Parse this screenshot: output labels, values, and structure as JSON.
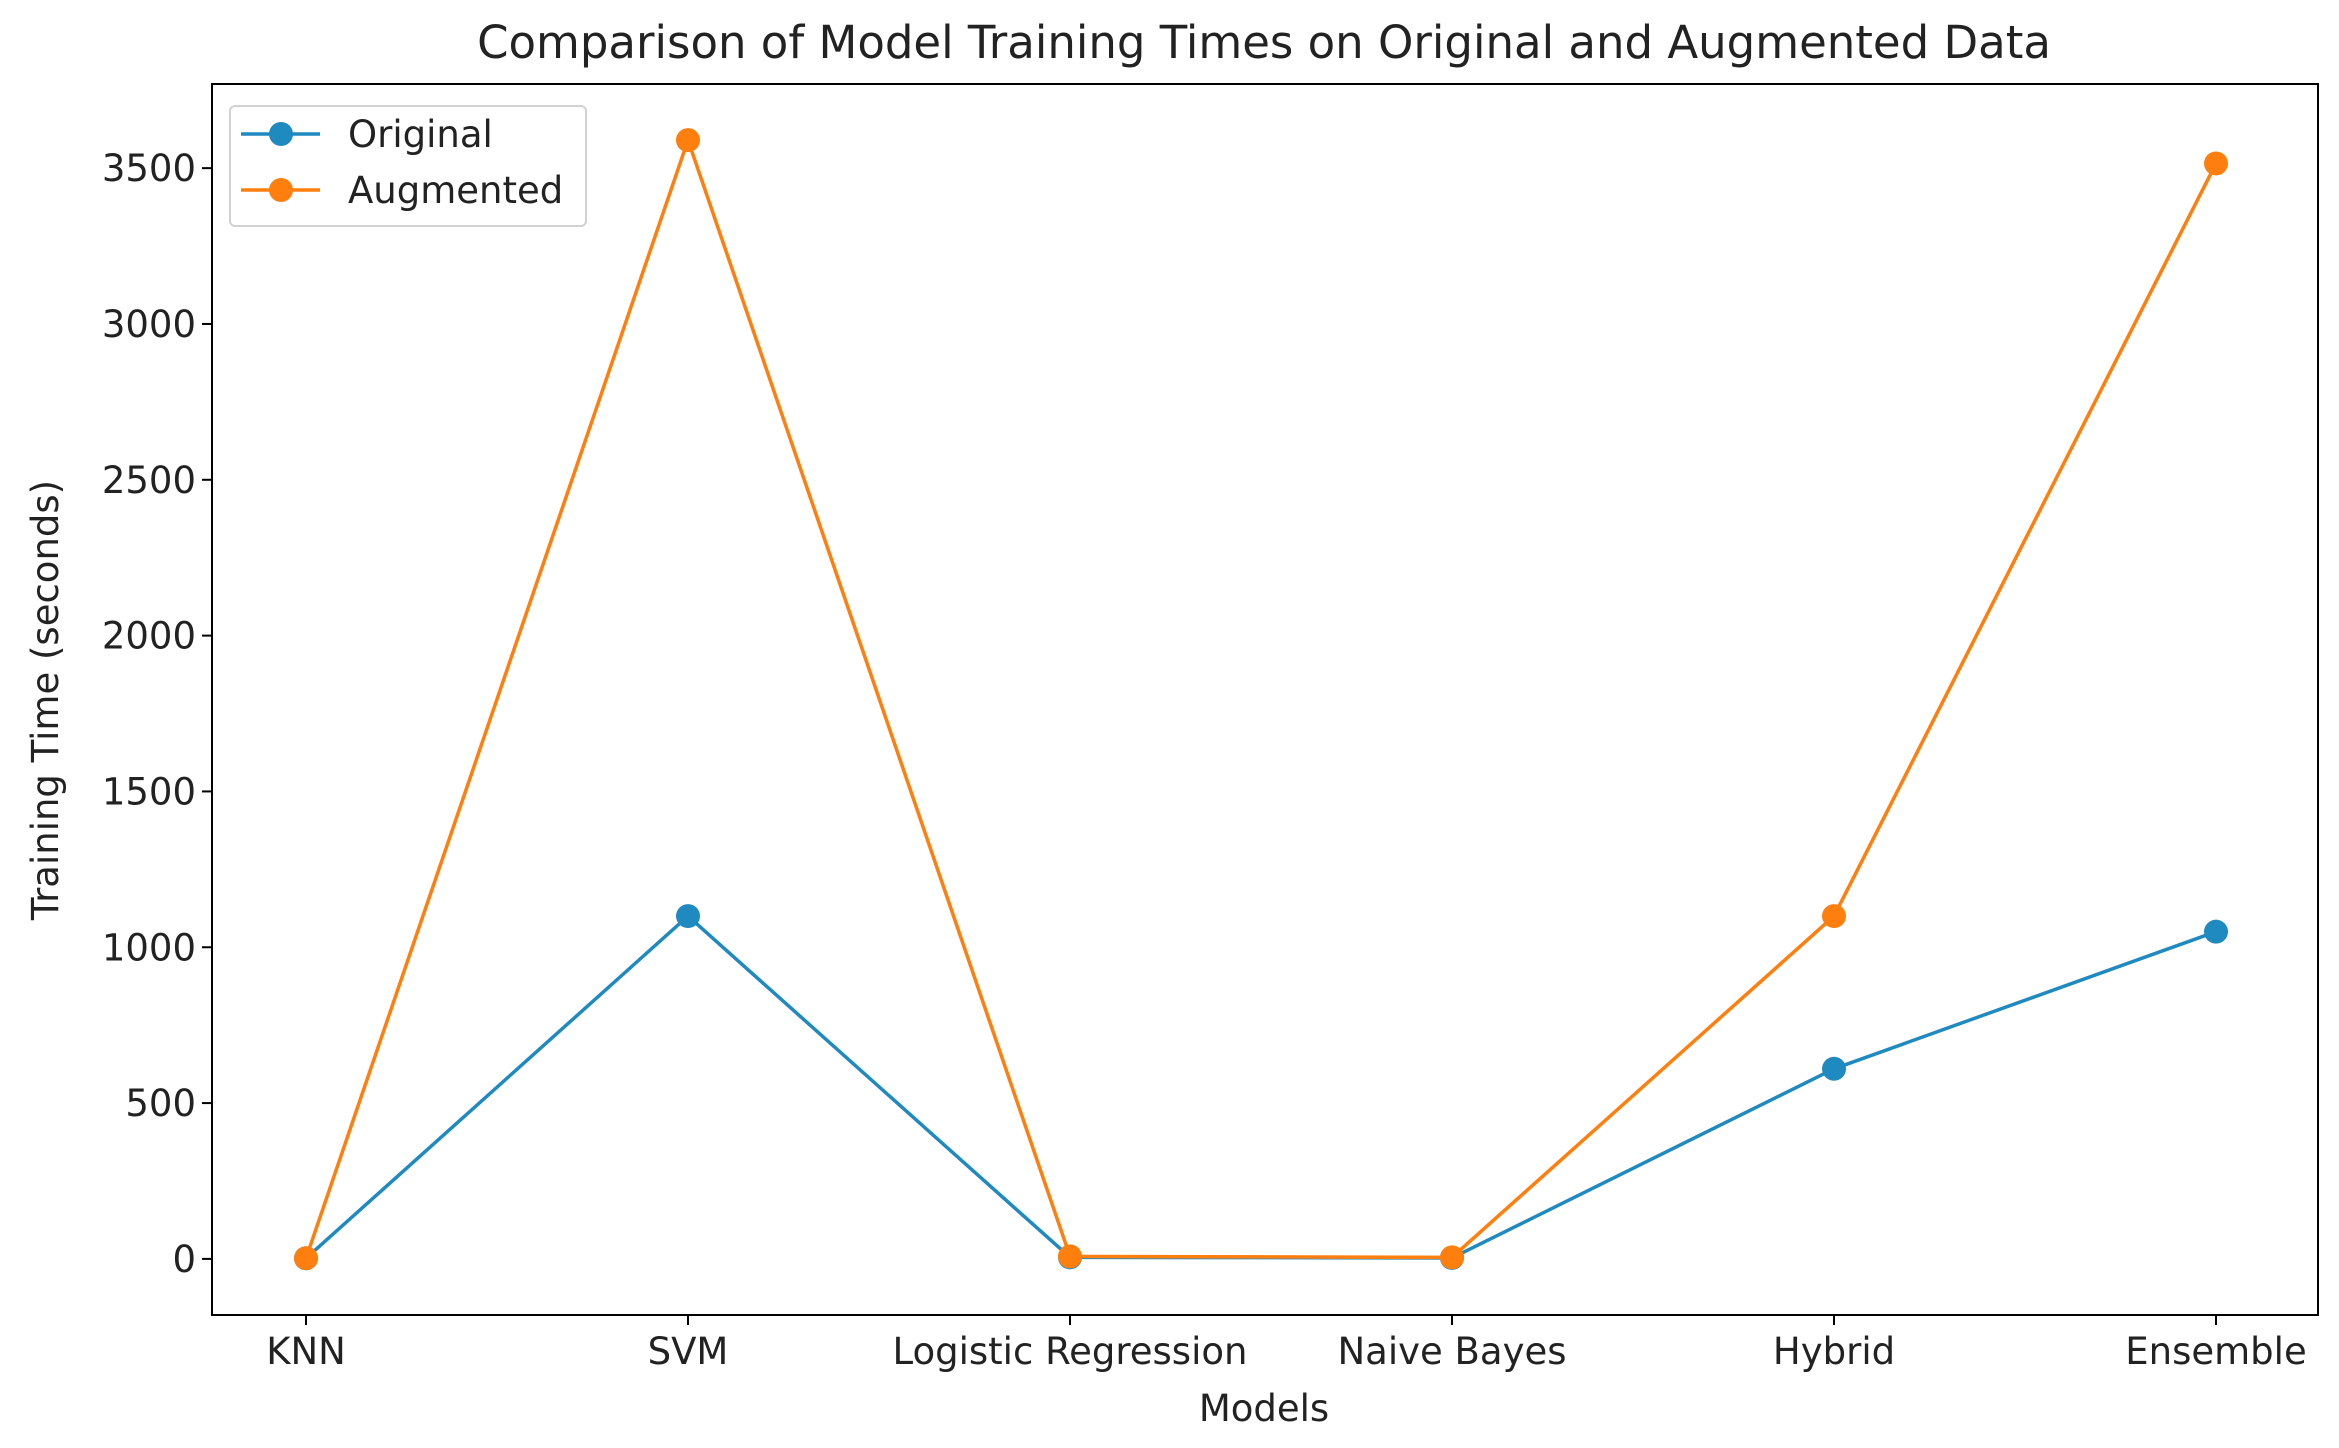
{
  "chart_data": {
    "type": "line",
    "title": "Comparison of Model Training Times on Original and Augmented Data",
    "xlabel": "Models",
    "ylabel": "Training Time (seconds)",
    "categories": [
      "KNN",
      "SVM",
      "Logistic Regression",
      "Naive Bayes",
      "Hybrid",
      "Ensemble"
    ],
    "series": [
      {
        "name": "Original",
        "color": "#1f8ac0",
        "marker": "circle",
        "values": [
          2,
          1100,
          5,
          3,
          610,
          1050
        ]
      },
      {
        "name": "Augmented",
        "color": "#ff7f0e",
        "marker": "circle",
        "values": [
          2,
          3590,
          8,
          5,
          1100,
          3515
        ]
      }
    ],
    "ylim": [
      -180,
      3770
    ],
    "yticks": [
      0,
      500,
      1000,
      1500,
      2000,
      2500,
      3000,
      3500
    ],
    "grid": false,
    "legend_position": "top-left"
  }
}
